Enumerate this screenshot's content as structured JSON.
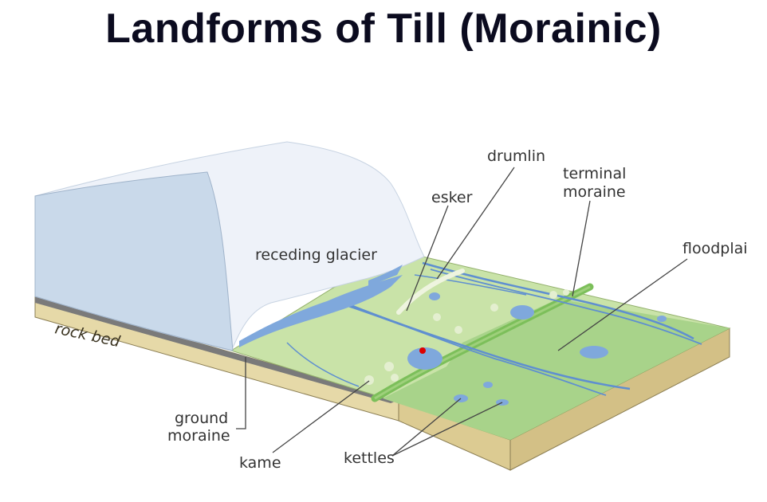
{
  "title": "Landforms of Till (Morainic)",
  "labels": {
    "drumlin": "drumlin",
    "terminal_moraine_line1": "terminal",
    "terminal_moraine_line2": "moraine",
    "esker": "esker",
    "receding_glacier": "receding glacier",
    "floodplain": "floodplai",
    "rock_bed": "rock bed",
    "ground_moraine_line1": "ground",
    "ground_moraine_line2": "moraine",
    "kame": "kame",
    "kettles": "kettles"
  },
  "colors": {
    "glacier": "#eef2f9",
    "glacier_side": "#c9d9ea",
    "outwash_green": "#c8e3a6",
    "floodplain_green": "#a9d58b",
    "water": "#7fa8dc",
    "rock_bed": "#e3d6a3",
    "marker": "#dd0000"
  },
  "icons": [
    "red-dot-marker"
  ]
}
